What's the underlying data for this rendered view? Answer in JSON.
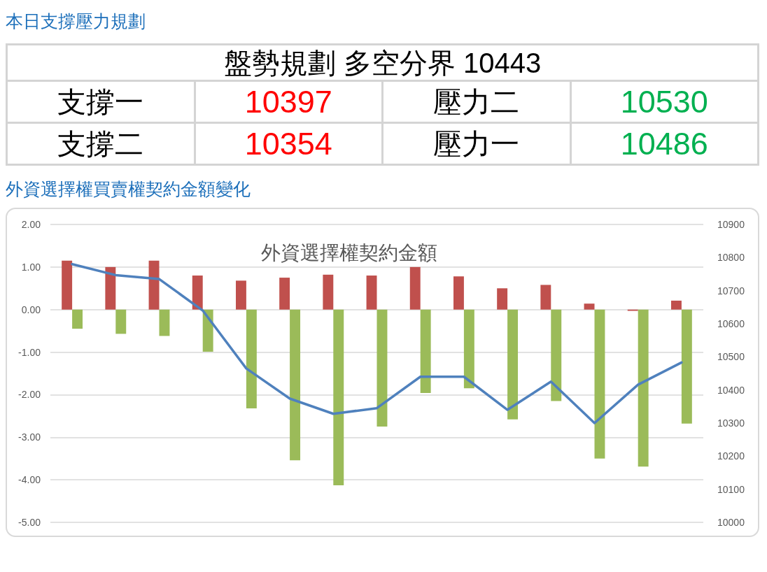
{
  "chart_data": [
    {
      "type": "other",
      "title": "本日支撐壓力規劃",
      "subtitle": "盤勢規劃 多空分界 10443",
      "annotations": [
        "支撐一",
        "10397",
        "壓力二",
        "10530",
        "支撐二",
        "10354",
        "壓力一",
        "10486"
      ]
    },
    {
      "type": "bar",
      "title": "外資選擇權買賣權契約金額變化",
      "subtitle": "外資選擇權契約金額",
      "categories": [
        null,
        null,
        null,
        null,
        null,
        null,
        null,
        null,
        null,
        null,
        null,
        null,
        null,
        null,
        null
      ],
      "series": [
        {
          "color": "#c0504d",
          "values": [
            1.15,
            1.0,
            1.15,
            0.8,
            0.68,
            0.75,
            0.82,
            0.8,
            1.0,
            0.78,
            0.5,
            0.58,
            0.14,
            -0.03,
            0.21
          ]
        },
        {
          "color": "#9bbb59",
          "values": [
            -0.45,
            -0.57,
            -0.62,
            -0.99,
            -2.32,
            -3.54,
            -4.13,
            -2.75,
            -1.96,
            -1.85,
            -2.58,
            -2.15,
            -3.5,
            -3.69,
            -2.68
          ]
        },
        {
          "type": "line",
          "axis": "y2",
          "color": "#4f81bd",
          "values": [
            10780,
            10747,
            10735,
            10640,
            10465,
            10374,
            10328,
            10345,
            10440,
            10440,
            10340,
            10425,
            10300,
            10416,
            10483
          ]
        }
      ],
      "ylim": [
        -5,
        2
      ],
      "yticks": [
        {
          "value": -5,
          "label": "-5.00"
        },
        {
          "value": -4,
          "label": "-4.00"
        },
        {
          "value": -3,
          "label": "-3.00"
        },
        {
          "value": -2,
          "label": "-2.00"
        },
        {
          "value": -1,
          "label": "-1.00"
        },
        {
          "value": 0,
          "label": "0.00"
        },
        {
          "value": 1,
          "label": "1.00"
        },
        {
          "value": 2,
          "label": "2.00"
        }
      ],
      "y2lim": [
        10000,
        10900
      ],
      "y2ticks": [
        10000,
        10100,
        10200,
        10300,
        10400,
        10500,
        10600,
        10700,
        10800,
        10900
      ],
      "grid": "y",
      "marker": "none"
    }
  ]
}
